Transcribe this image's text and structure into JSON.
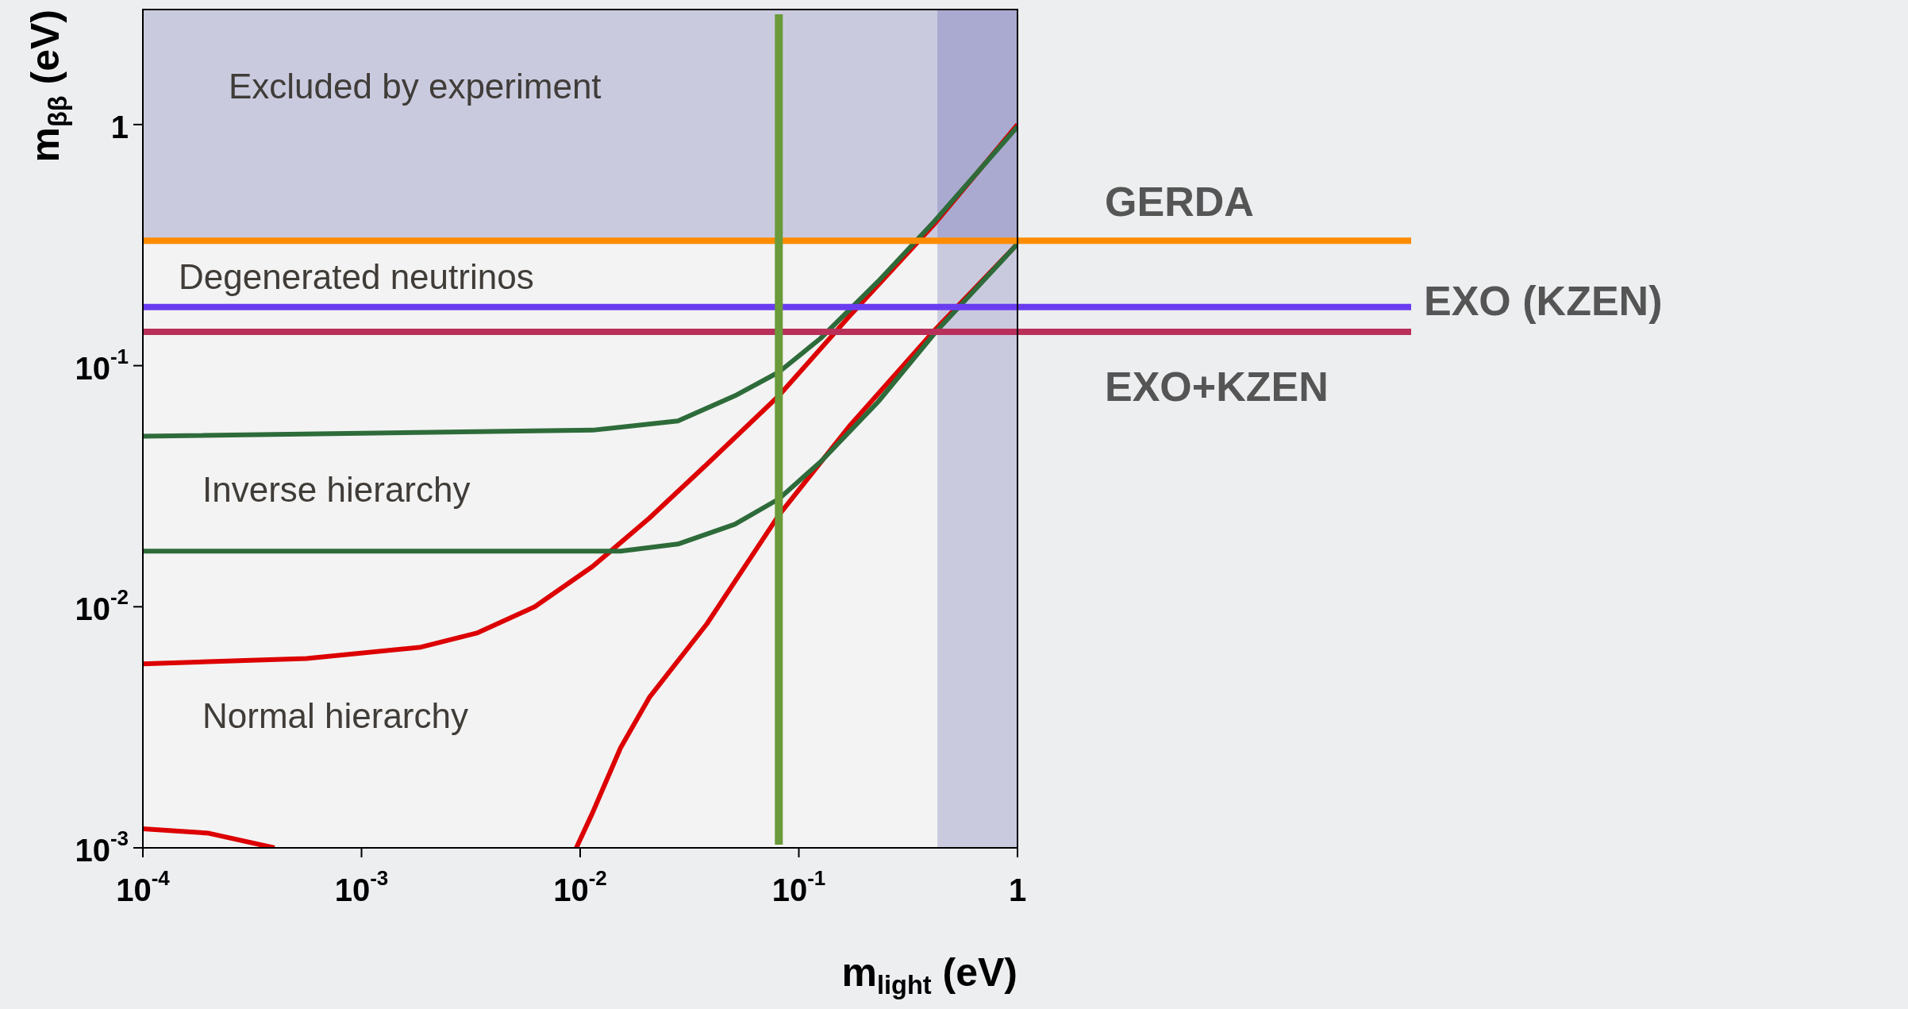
{
  "chart_data": {
    "type": "line",
    "log": "xy",
    "marker": "none",
    "xlabel": "m$_{light}$ (eV)",
    "ylabel": "m$_{ββ}$ (eV)",
    "xlim": [
      0.0001,
      1
    ],
    "ylim": [
      0.001,
      3
    ],
    "xticks": [
      {
        "value": 0.0001,
        "label": "10$^{-4}$"
      },
      {
        "value": 0.001,
        "label": "10$^{-3}$"
      },
      {
        "value": 0.01,
        "label": "10$^{-2}$"
      },
      {
        "value": 0.1,
        "label": "10$^{-1}$"
      },
      1
    ],
    "yticks": [
      {
        "value": 0.001,
        "label": "10$^{-3}$"
      },
      {
        "value": 0.01,
        "label": "10$^{-2}$"
      },
      {
        "value": 0.1,
        "label": "10$^{-1}$"
      },
      1
    ],
    "series": [
      {
        "color": "#2e6b3a",
        "x": [
          0.0001,
          0.0114,
          0.028,
          0.051,
          0.081,
          0.126,
          0.231,
          0.42,
          1
        ],
        "values": [
          0.051,
          0.054,
          0.059,
          0.075,
          0.094,
          0.13,
          0.224,
          0.4,
          0.98
        ]
      },
      {
        "color": "#2e6b3a",
        "x": [
          0.0001,
          0.0153,
          0.028,
          0.051,
          0.081,
          0.126,
          0.231,
          0.42,
          1
        ],
        "values": [
          0.017,
          0.017,
          0.0182,
          0.022,
          0.028,
          0.04,
          0.071,
          0.137,
          0.32
        ]
      },
      {
        "color": "#dd0000",
        "x": [
          0.0001,
          0.00056,
          0.00187,
          0.0034,
          0.0062,
          0.0114,
          0.0207,
          0.038,
          0.081,
          0.17,
          0.42,
          1
        ],
        "values": [
          0.0058,
          0.0061,
          0.0068,
          0.0078,
          0.01,
          0.0147,
          0.0233,
          0.039,
          0.075,
          0.16,
          0.39,
          1
        ]
      },
      {
        "color": "#dd0000",
        "x": [
          0.0001,
          0.0002,
          0.0004,
          0.005,
          0.0096,
          0.0114,
          0.0153,
          0.0207,
          0.038,
          0.081,
          0.17,
          0.42,
          1
        ],
        "values": [
          0.0012,
          0.00115,
          0.001,
          null,
          0.001,
          0.0014,
          0.0026,
          0.0042,
          0.0085,
          0.024,
          0.056,
          0.141,
          0.32
        ]
      }
    ],
    "ref_lines": [
      {
        "axis": "y",
        "value": 0.33,
        "label": "GERDA",
        "color": "#ff8c00"
      },
      {
        "axis": "y",
        "value": 0.175,
        "label": "EXO (KZEN)",
        "color": "#6a3cf0"
      },
      {
        "axis": "y",
        "value": 0.138,
        "label": "EXO+KZEN",
        "color": "#b8305a"
      },
      {
        "axis": "x",
        "value": 0.081,
        "color": "#6a9a3a"
      }
    ],
    "bands": [
      {
        "axis": "y",
        "from": 0.32,
        "to": 3,
        "color": "#3a3a9a"
      },
      {
        "axis": "x",
        "from": 0.43,
        "to": 1,
        "color": "#3a3a9a"
      }
    ],
    "annotations": [
      "Excluded by experiment",
      "Degenerated neutrinos",
      "Inverse hierarchy",
      "Normal hierarchy"
    ]
  }
}
